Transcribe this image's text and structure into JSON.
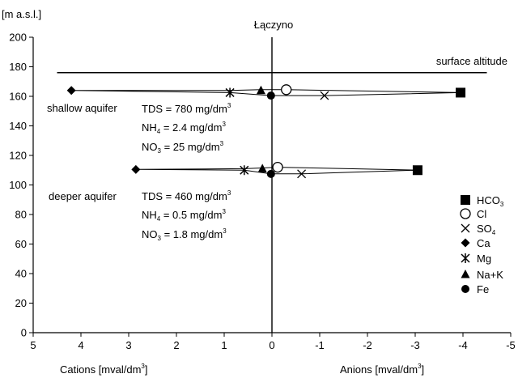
{
  "chart_data": {
    "type": "scatter",
    "title": "Łączyno",
    "ylabel": "[m a.s.l.]",
    "xlabel_left": "Cations   [mval/dm",
    "xlabel_left_sup": "3",
    "xlabel_left_end": "]",
    "xlabel_right": "Anions   [mval/dm",
    "xlabel_right_sup": "3",
    "xlabel_right_end": "]",
    "xlim": [
      5,
      -5
    ],
    "ylim": [
      0,
      200
    ],
    "x_ticks": [
      5,
      4,
      3,
      2,
      1,
      0,
      -1,
      -2,
      -3,
      -4,
      -5
    ],
    "y_ticks": [
      0,
      20,
      40,
      60,
      80,
      100,
      120,
      140,
      160,
      180,
      200
    ],
    "surface_altitude": {
      "y": 176,
      "x_range": [
        4.5,
        -4.5
      ],
      "label": "surface altitude"
    },
    "profiles": [
      {
        "name": "shallow aquifer",
        "points": [
          {
            "ion": "HCO3",
            "x": -3.95,
            "y": 162.5
          },
          {
            "ion": "Cl",
            "x": -0.3,
            "y": 164.5
          },
          {
            "ion": "SO4",
            "x": -1.1,
            "y": 160.5
          },
          {
            "ion": "Ca",
            "x": 4.2,
            "y": 164
          },
          {
            "ion": "Mg",
            "x": 0.88,
            "y": 162.5
          },
          {
            "ion": "Na+K",
            "x": 0.23,
            "y": 164
          },
          {
            "ion": "Fe",
            "x": 0.02,
            "y": 160.5
          }
        ],
        "outline": [
          [
            4.2,
            164
          ],
          [
            0.88,
            164
          ],
          [
            0.23,
            164.5
          ],
          [
            -0.3,
            164.5
          ],
          [
            -3.95,
            162.5
          ],
          [
            -1.1,
            160.5
          ],
          [
            0.02,
            160.5
          ],
          [
            0.88,
            162.5
          ],
          [
            4.2,
            164
          ]
        ],
        "annotations": [
          {
            "main": "TDS = 780 mg/dm",
            "sub": "",
            "unit_sup": "3"
          },
          {
            "main": "NH",
            "sub": "4",
            "rest": " = 2.4 mg/dm",
            "unit_sup": "3"
          },
          {
            "main": "NO",
            "sub": "3",
            "rest": " = 25 mg/dm",
            "unit_sup": "3"
          }
        ]
      },
      {
        "name": "deeper aquifer",
        "points": [
          {
            "ion": "HCO3",
            "x": -3.05,
            "y": 110
          },
          {
            "ion": "Cl",
            "x": -0.12,
            "y": 112
          },
          {
            "ion": "SO4",
            "x": -0.62,
            "y": 107.5
          },
          {
            "ion": "Ca",
            "x": 2.85,
            "y": 110.5
          },
          {
            "ion": "Mg",
            "x": 0.58,
            "y": 110
          },
          {
            "ion": "Na+K",
            "x": 0.2,
            "y": 111
          },
          {
            "ion": "Fe",
            "x": 0.02,
            "y": 107.5
          }
        ],
        "outline": [
          [
            2.85,
            110.5
          ],
          [
            0.58,
            111
          ],
          [
            0.2,
            111.5
          ],
          [
            -0.12,
            112
          ],
          [
            -3.05,
            110
          ],
          [
            -0.62,
            107.5
          ],
          [
            0.02,
            107.5
          ],
          [
            0.58,
            110
          ],
          [
            2.85,
            110.5
          ]
        ],
        "annotations": [
          {
            "main": "TDS = 460 mg/dm",
            "sub": "",
            "unit_sup": "3"
          },
          {
            "main": "NH",
            "sub": "4",
            "rest": " = 0.5 mg/dm",
            "unit_sup": "3"
          },
          {
            "main": "NO",
            "sub": "3",
            "rest": " = 1.8 mg/dm",
            "unit_sup": "3"
          }
        ]
      }
    ],
    "legend": {
      "placement": "right",
      "entries": [
        {
          "ion": "HCO3",
          "base": "HCO",
          "sub": "3",
          "marker": "square"
        },
        {
          "ion": "Cl",
          "base": "Cl",
          "sub": "",
          "marker": "circle"
        },
        {
          "ion": "SO4",
          "base": "SO",
          "sub": "4",
          "marker": "cross"
        },
        {
          "ion": "Ca",
          "base": "Ca",
          "sub": "",
          "marker": "diamond"
        },
        {
          "ion": "Mg",
          "base": "Mg",
          "sub": "",
          "marker": "star"
        },
        {
          "ion": "Na+K",
          "base": "Na+K",
          "sub": "",
          "marker": "triangle"
        },
        {
          "ion": "Fe",
          "base": "Fe",
          "sub": "",
          "marker": "dot"
        }
      ]
    }
  }
}
